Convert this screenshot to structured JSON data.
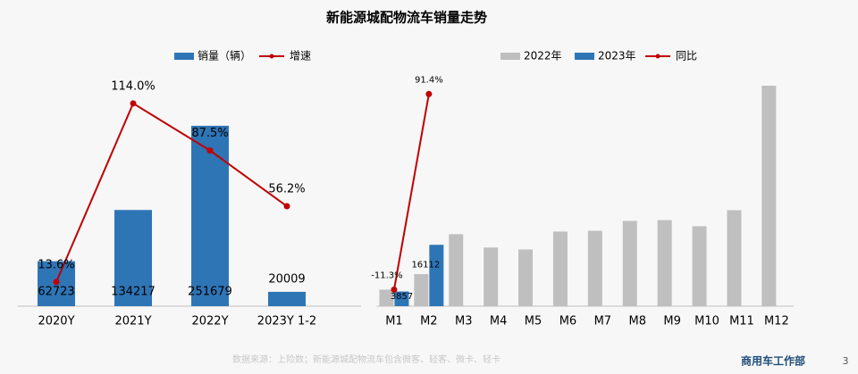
{
  "title": "新能源城配物流车销量走势",
  "chart_data": [
    {
      "type": "bar",
      "categories": [
        "2020Y",
        "2021Y",
        "2022Y",
        "2023Y 1-2"
      ],
      "ylim": [
        0,
        340000
      ],
      "y2lim": [
        0,
        137
      ],
      "series": [
        {
          "name": "销量（辆）",
          "color": "#2e75b6",
          "values": [
            62723,
            134217,
            251679,
            20009
          ],
          "show_labels": true
        },
        {
          "name": "增速",
          "type": "line",
          "axis": "y2",
          "color": "#c00000",
          "values": [
            13.6,
            114.0,
            87.5,
            56.2
          ],
          "value_labels": [
            "13.6%",
            "114.0%",
            "87.5%",
            "56.2%"
          ],
          "show_labels": true
        }
      ]
    },
    {
      "type": "bar",
      "categories": [
        "M1",
        "M2",
        "M3",
        "M4",
        "M5",
        "M6",
        "M7",
        "M8",
        "M9",
        "M10",
        "M11",
        "M12"
      ],
      "ylim": [
        0,
        64000
      ],
      "y2lim": [
        -20,
        108
      ],
      "series": [
        {
          "name": "2022年",
          "color": "#bfbfbf",
          "values": [
            4348,
            8418,
            18900,
            15400,
            14900,
            19600,
            19800,
            22400,
            22600,
            21000,
            25200,
            57900
          ]
        },
        {
          "name": "2023年",
          "color": "#2e75b6",
          "values": [
            3857,
            16112,
            null,
            null,
            null,
            null,
            null,
            null,
            null,
            null,
            null,
            null
          ],
          "show_labels": true
        },
        {
          "name": "同比",
          "type": "line",
          "axis": "y2",
          "color": "#c00000",
          "values": [
            -11.3,
            91.4,
            null,
            null,
            null,
            null,
            null,
            null,
            null,
            null,
            null,
            null
          ],
          "value_labels": [
            "-11.3%",
            "91.4%",
            null,
            null,
            null,
            null,
            null,
            null,
            null,
            null,
            null,
            null
          ],
          "show_labels": true
        }
      ]
    }
  ],
  "source": "数据来源：上险数；新能源城配物流车包含微客、轻客、微卡、轻卡",
  "footer": "商用车工作部",
  "page_number": "3"
}
